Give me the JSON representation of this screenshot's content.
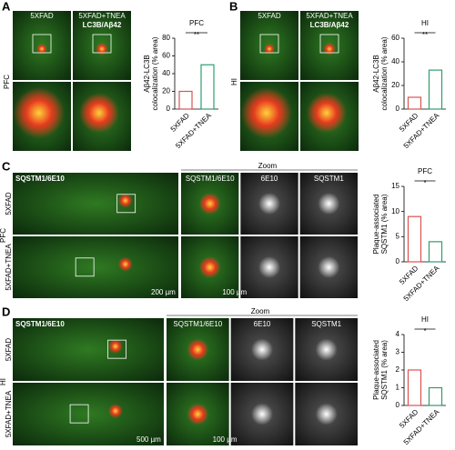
{
  "panels": [
    {
      "letter": "A",
      "columns": [
        "5XFAD",
        "5XFAD+TNEA"
      ],
      "stain": "LC3B/Aβ42",
      "region": "PFC"
    },
    {
      "letter": "B",
      "columns": [
        "5XFAD",
        "5XFAD+TNEA"
      ],
      "stain": "LC3B/Aβ42",
      "region": "HI"
    },
    {
      "letter": "C",
      "stain": "SQSTM1/6E10",
      "zoom": "Zoom",
      "zoom_columns": [
        "SQSTM1/6E10",
        "6E10",
        "SQSTM1"
      ],
      "rows": [
        "5XFAD",
        "5XFAD+TNEA"
      ],
      "region": "PFC",
      "scale_bars": [
        "200 µm",
        "100 µm"
      ]
    },
    {
      "letter": "D",
      "stain": "SQSTM1/6E10",
      "zoom": "Zoom",
      "zoom_columns": [
        "SQSTM1/6E10",
        "6E10",
        "SQSTM1"
      ],
      "rows": [
        "5XFAD",
        "5XFAD+TNEA"
      ],
      "region": "HI",
      "scale_bars": [
        "500 µm",
        "100 µm"
      ]
    }
  ],
  "chart_data": [
    {
      "type": "bar",
      "title": "PFC",
      "ylabel": [
        "Aβ42-LC3B",
        "colocalization (% area)"
      ],
      "categories": [
        "5XFAD",
        "5XFAD+TNEA"
      ],
      "values": [
        20,
        50
      ],
      "colors": [
        "#d9534f",
        "#2e9e6e"
      ],
      "ylim": [
        0,
        80
      ],
      "yticks": [
        0,
        20,
        40,
        60,
        80
      ],
      "annotation": "**"
    },
    {
      "type": "bar",
      "title": "HI",
      "ylabel": [
        "Aβ42-LC3B",
        "colocalization (% area)"
      ],
      "categories": [
        "5XFAD",
        "5XFAD+TNEA"
      ],
      "values": [
        10,
        33
      ],
      "colors": [
        "#d9534f",
        "#2e9e6e"
      ],
      "ylim": [
        0,
        60
      ],
      "yticks": [
        0,
        20,
        40,
        60
      ],
      "annotation": "**"
    },
    {
      "type": "bar",
      "title": "PFC",
      "ylabel": [
        "Plaque-associated",
        "SQSTM1 (% area)"
      ],
      "categories": [
        "5XFAD",
        "5XFAD+TNEA"
      ],
      "values": [
        9,
        4
      ],
      "colors": [
        "#d9534f",
        "#2e9e6e"
      ],
      "ylim": [
        0,
        15
      ],
      "yticks": [
        0,
        5,
        10,
        15
      ],
      "annotation": "*"
    },
    {
      "type": "bar",
      "title": "HI",
      "ylabel": [
        "Plaque-associated",
        "SQSTM1 (% area)"
      ],
      "categories": [
        "5XFAD",
        "5XFAD+TNEA"
      ],
      "values": [
        2,
        1
      ],
      "colors": [
        "#d9534f",
        "#2e9e6e"
      ],
      "ylim": [
        0,
        4
      ],
      "yticks": [
        0,
        1,
        2,
        3,
        4
      ],
      "annotation": "*"
    }
  ]
}
